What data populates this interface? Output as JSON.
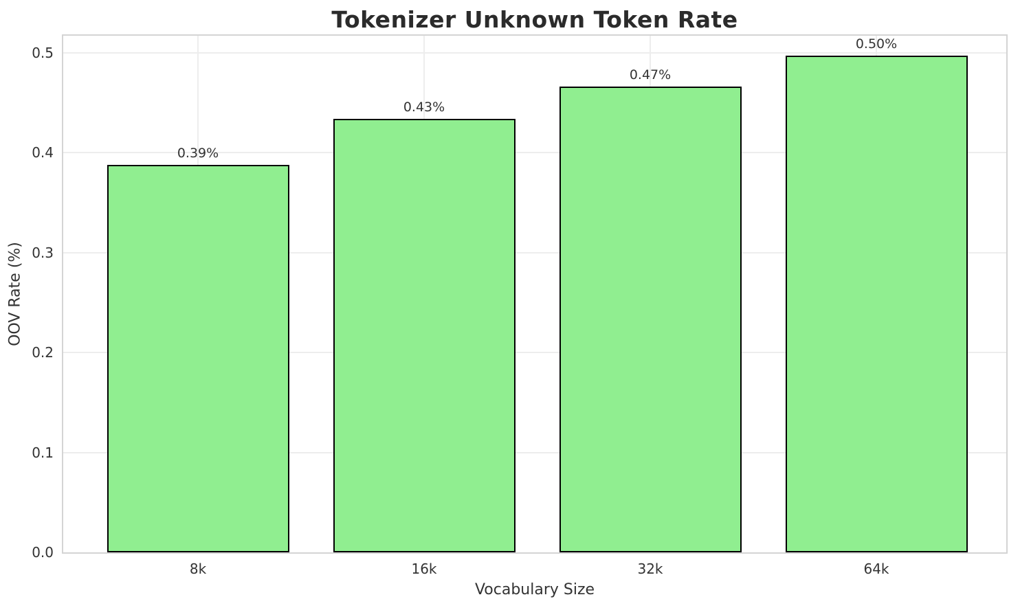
{
  "chart": {
    "title": "Tokenizer Unknown Token Rate",
    "xlabel": "Vocabulary Size",
    "ylabel": "OOV Rate (%)"
  },
  "chart_data": {
    "type": "bar",
    "title": "Tokenizer Unknown Token Rate",
    "xlabel": "Vocabulary Size",
    "ylabel": "OOV Rate (%)",
    "categories": [
      "8k",
      "16k",
      "32k",
      "64k"
    ],
    "values": [
      0.388,
      0.434,
      0.466,
      0.497
    ],
    "bar_labels": [
      "0.39%",
      "0.43%",
      "0.47%",
      "0.50%"
    ],
    "ylim": [
      0,
      0.517
    ],
    "y_ticks": [
      0.0,
      0.1,
      0.2,
      0.3,
      0.4,
      0.5
    ],
    "y_tick_labels": [
      "0.0",
      "0.1",
      "0.2",
      "0.3",
      "0.4",
      "0.5"
    ],
    "grid": true,
    "legend": "none",
    "bar_color": "#90EE90",
    "bar_edge_color": "#000000"
  },
  "colors": {
    "background": "#ffffff",
    "grid": "#ededed",
    "spine": "#d4d4d4",
    "text": "#333333",
    "title": "#2b2b2b"
  }
}
